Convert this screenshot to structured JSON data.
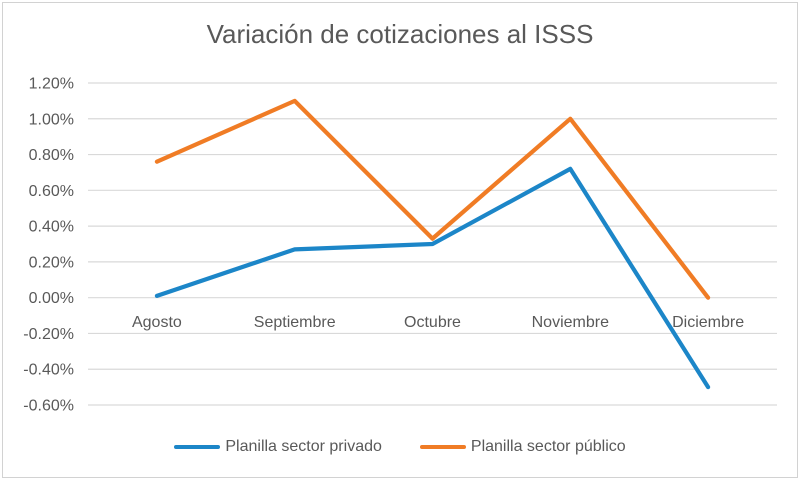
{
  "page": {
    "background": "#ffffff",
    "frame_border_color": "#d2d2d2"
  },
  "chart_data": {
    "type": "line",
    "title": "Variación de cotizaciones al ISSS",
    "categories": [
      "Agosto",
      "Septiembre",
      "Octubre",
      "Noviembre",
      "Diciembre"
    ],
    "series": [
      {
        "name": "Planilla sector privado",
        "color": "#1c86c8",
        "values": [
          0.01,
          0.27,
          0.3,
          0.72,
          -0.5
        ]
      },
      {
        "name": "Planilla sector público",
        "color": "#f07c25",
        "values": [
          0.76,
          1.1,
          0.33,
          1.0,
          0.0
        ]
      }
    ],
    "y_axis": {
      "min": -0.6,
      "max": 1.2,
      "step": 0.2,
      "format": "percent",
      "tick_labels": [
        "1.20%",
        "1.00%",
        "0.80%",
        "0.60%",
        "0.40%",
        "0.20%",
        "0.00%",
        "-0.20%",
        "-0.40%",
        "-0.60%"
      ]
    },
    "grid": true,
    "legend_position": "bottom",
    "colors": {
      "grid": "#d9d9d9",
      "text": "#595959",
      "title": "#595959"
    }
  }
}
